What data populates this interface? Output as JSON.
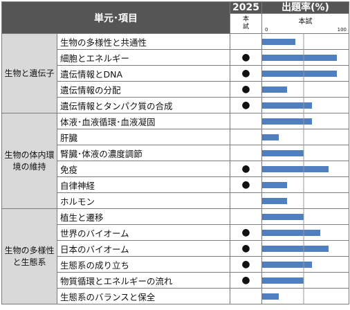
{
  "header": {
    "unit_label": "単元･項目",
    "year_label": "2025",
    "year_sub": "本試",
    "rate_label": "出題率(%)",
    "rate_sub": "本試",
    "tick_min": "0",
    "tick_max": "100"
  },
  "marker_symbol": "●",
  "categories": [
    {
      "label": "生物と遺伝子",
      "items": [
        {
          "name": "生物の多様性と共通性",
          "in2025": false,
          "rate": 40
        },
        {
          "name": "細胞とエネルギー",
          "in2025": true,
          "rate": 90
        },
        {
          "name": "遺伝情報とDNA",
          "in2025": true,
          "rate": 90
        },
        {
          "name": "遺伝情報の分配",
          "in2025": true,
          "rate": 30
        },
        {
          "name": "遺伝情報とタンパク質の合成",
          "in2025": true,
          "rate": 60
        }
      ]
    },
    {
      "label": "生物の体内環境の維持",
      "items": [
        {
          "name": "体液･血液循環･血液凝固",
          "in2025": false,
          "rate": 60
        },
        {
          "name": "肝臓",
          "in2025": false,
          "rate": 20
        },
        {
          "name": "腎臓･体液の濃度調節",
          "in2025": false,
          "rate": 50
        },
        {
          "name": "免疫",
          "in2025": true,
          "rate": 80
        },
        {
          "name": "自律神経",
          "in2025": true,
          "rate": 30
        },
        {
          "name": "ホルモン",
          "in2025": false,
          "rate": 30
        }
      ]
    },
    {
      "label": "生物の多様性と生態系",
      "items": [
        {
          "name": "植生と遷移",
          "in2025": false,
          "rate": 50
        },
        {
          "name": "世界のバイオーム",
          "in2025": true,
          "rate": 70
        },
        {
          "name": "日本のバイオーム",
          "in2025": true,
          "rate": 80
        },
        {
          "name": "生態系の成り立ち",
          "in2025": true,
          "rate": 60
        },
        {
          "name": "物質循環とエネルギーの流れ",
          "in2025": true,
          "rate": 50
        },
        {
          "name": "生態系のバランスと保全",
          "in2025": false,
          "rate": 20
        }
      ]
    }
  ],
  "chart_data": {
    "type": "bar",
    "orientation": "horizontal",
    "title": "出題率(%)",
    "subtitle": "本試",
    "xlim": [
      0,
      100
    ],
    "reference_line": 50,
    "bar_color": "#4f7fbf",
    "categories": [
      "生物の多様性と共通性",
      "細胞とエネルギー",
      "遺伝情報とDNA",
      "遺伝情報の分配",
      "遺伝情報とタンパク質の合成",
      "体液･血液循環･血液凝固",
      "肝臓",
      "腎臓･体液の濃度調節",
      "免疫",
      "自律神経",
      "ホルモン",
      "植生と遷移",
      "世界のバイオーム",
      "日本のバイオーム",
      "生態系の成り立ち",
      "物質循環とエネルギーの流れ",
      "生態系のバランスと保全"
    ],
    "values": [
      40,
      90,
      90,
      30,
      60,
      60,
      20,
      50,
      80,
      30,
      30,
      50,
      70,
      80,
      60,
      50,
      20
    ]
  }
}
